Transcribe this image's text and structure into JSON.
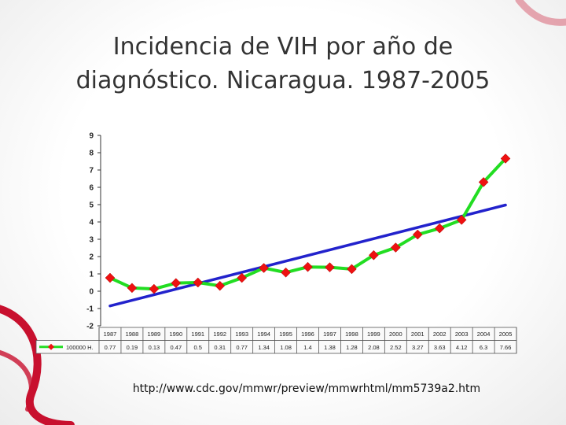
{
  "slide": {
    "title_line1": "Incidencia de VIH por año de",
    "title_line2": "diagnóstico. Nicaragua. 1987-2005",
    "source_url": "http://www.cdc.gov/mmwr/preview/mmwrhtml/mm5739a2.htm",
    "ribbon_color": "#c8102e"
  },
  "chart_data": {
    "type": "line",
    "categories": [
      "1987",
      "1988",
      "1989",
      "1990",
      "1991",
      "1992",
      "1993",
      "1994",
      "1995",
      "1996",
      "1997",
      "1998",
      "1999",
      "2000",
      "2001",
      "2002",
      "2003",
      "2004",
      "2005"
    ],
    "series": [
      {
        "name": "100000 H.",
        "color": "#22dd22",
        "marker": "diamond",
        "marker_color": "#ee1111",
        "values": [
          0.77,
          0.19,
          0.13,
          0.47,
          0.5,
          0.31,
          0.77,
          1.34,
          1.08,
          1.4,
          1.38,
          1.28,
          2.08,
          2.52,
          3.27,
          3.63,
          4.12,
          6.3,
          7.66
        ],
        "value_labels": [
          "0.77",
          "0.19",
          "0.13",
          "0.47",
          "0.5",
          "0.31",
          "0.77",
          "1.34",
          "1.08",
          "1.4",
          "1.38",
          "1.28",
          "2.08",
          "2.52",
          "3.27",
          "3.63",
          "4.12",
          "6.3",
          "7.66"
        ]
      }
    ],
    "trendline": {
      "type": "linear",
      "color": "#2222cc"
    },
    "yticks": [
      9,
      8,
      7,
      6,
      5,
      4,
      3,
      2,
      1,
      0,
      -1,
      -2
    ],
    "ylim": [
      -2,
      9
    ],
    "grid": false,
    "legend": "data-table",
    "title": "",
    "xlabel": "",
    "ylabel": ""
  }
}
